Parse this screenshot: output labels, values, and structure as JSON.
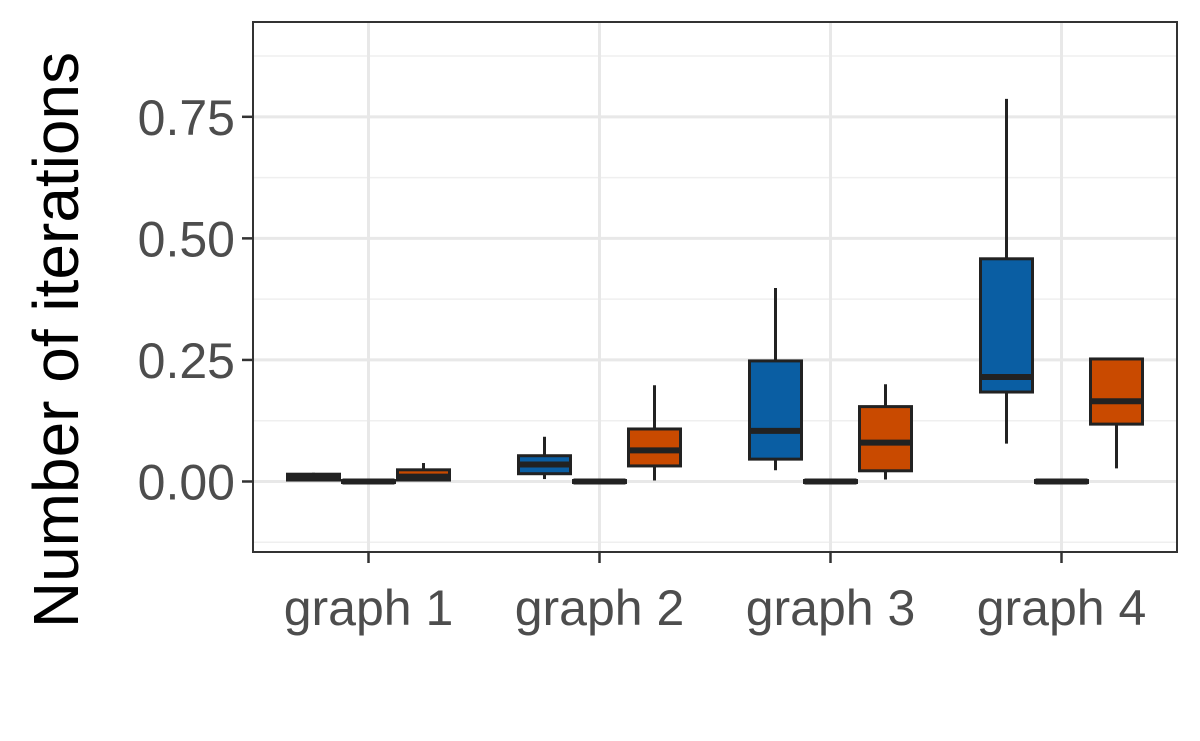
{
  "chart_data": {
    "type": "boxplot",
    "title": "",
    "xlabel": "",
    "ylabel": "Number of iterations",
    "ylim": [
      -0.145,
      0.945
    ],
    "y_ticks": [
      0.0,
      0.25,
      0.5,
      0.75
    ],
    "y_tick_labels": [
      "0.00",
      "0.25",
      "0.50",
      "0.75"
    ],
    "categories": [
      "graph 1",
      "graph 2",
      "graph 3",
      "graph 4"
    ],
    "grid": true,
    "legend": "none",
    "series": [
      {
        "color": "#0a5ea3",
        "boxes": [
          {
            "whisker_low": 0.0,
            "q1": 0.003,
            "median": 0.008,
            "q3": 0.015,
            "whisker_high": 0.018
          },
          {
            "whisker_low": 0.005,
            "q1": 0.016,
            "median": 0.035,
            "q3": 0.053,
            "whisker_high": 0.092
          },
          {
            "whisker_low": 0.023,
            "q1": 0.046,
            "median": 0.104,
            "q3": 0.248,
            "whisker_high": 0.398
          },
          {
            "whisker_low": 0.078,
            "q1": 0.184,
            "median": 0.215,
            "q3": 0.458,
            "whisker_high": 0.787
          }
        ]
      },
      {
        "color": "#2b2b2b",
        "boxes": [
          {
            "whisker_low": -0.003,
            "q1": -0.002,
            "median": 0.0,
            "q3": 0.002,
            "whisker_high": 0.003
          },
          {
            "whisker_low": -0.003,
            "q1": -0.002,
            "median": 0.0,
            "q3": 0.002,
            "whisker_high": 0.003
          },
          {
            "whisker_low": -0.003,
            "q1": -0.002,
            "median": 0.0,
            "q3": 0.002,
            "whisker_high": 0.003
          },
          {
            "whisker_low": -0.003,
            "q1": -0.002,
            "median": 0.0,
            "q3": 0.002,
            "whisker_high": 0.003
          }
        ]
      },
      {
        "color": "#c94a00",
        "boxes": [
          {
            "whisker_low": 0.0,
            "q1": 0.003,
            "median": 0.01,
            "q3": 0.024,
            "whisker_high": 0.038
          },
          {
            "whisker_low": 0.002,
            "q1": 0.032,
            "median": 0.064,
            "q3": 0.108,
            "whisker_high": 0.198
          },
          {
            "whisker_low": 0.004,
            "q1": 0.022,
            "median": 0.08,
            "q3": 0.154,
            "whisker_high": 0.2
          },
          {
            "whisker_low": 0.027,
            "q1": 0.118,
            "median": 0.165,
            "q3": 0.252,
            "whisker_high": 0.252
          }
        ]
      }
    ]
  }
}
